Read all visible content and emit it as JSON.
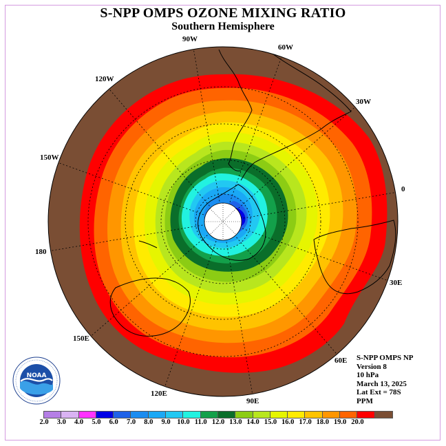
{
  "title": "S-NPP OMPS OZONE MIXING RATIO",
  "subtitle": "Southern Hemisphere",
  "lon_labels": [
    "90W",
    "60W",
    "30W",
    "0",
    "30E",
    "60E",
    "90E",
    "120E",
    "150E",
    "180",
    "150W",
    "120W"
  ],
  "info": {
    "instrument": "S-NPP OMPS NP",
    "version": "Version 8",
    "level": "10 hPa",
    "date": "March 13, 2025",
    "lat_ext": "Lat Ext = 78S",
    "unit": "PPM"
  },
  "logo_text": "NOAA",
  "colorbar": {
    "colors": [
      "#b57fe6",
      "#d9b3f2",
      "#ff33ff",
      "#0000e6",
      "#1f62e8",
      "#1a8cf0",
      "#1aa8f5",
      "#22c8f2",
      "#22f2e0",
      "#13a04a",
      "#0a6e2a",
      "#8ccc14",
      "#b8e61e",
      "#e6f500",
      "#ffeb00",
      "#ffc300",
      "#ff9600",
      "#ff6400",
      "#ff0000",
      "#7a4e34"
    ],
    "ticks": [
      "2.0",
      "3.0",
      "4.0",
      "5.0",
      "6.0",
      "7.0",
      "8.0",
      "9.0",
      "10.0",
      "11.0",
      "12.0",
      "13.0",
      "14.0",
      "15.0",
      "16.0",
      "17.0",
      "18.0",
      "19.0",
      "20.0"
    ]
  },
  "chart_data": {
    "type": "heatmap",
    "projection": "south polar stereographic",
    "variable": "ozone mixing ratio",
    "unit": "PPM",
    "level": "10 hPa",
    "contour_levels": [
      2.0,
      3.0,
      4.0,
      5.0,
      6.0,
      7.0,
      8.0,
      9.0,
      10.0,
      11.0,
      12.0,
      13.0,
      14.0,
      15.0,
      16.0,
      17.0,
      18.0,
      19.0,
      20.0
    ],
    "pattern": {
      "pole_center": "no data (white disk)",
      "near_pole_min_range": [
        5.0,
        8.0
      ],
      "polar_vortex_edge": [
        10.0,
        12.0
      ],
      "mid_latitudes": [
        13.0,
        18.0
      ],
      "outer_edge_max": [
        19.0,
        20.0
      ]
    }
  }
}
